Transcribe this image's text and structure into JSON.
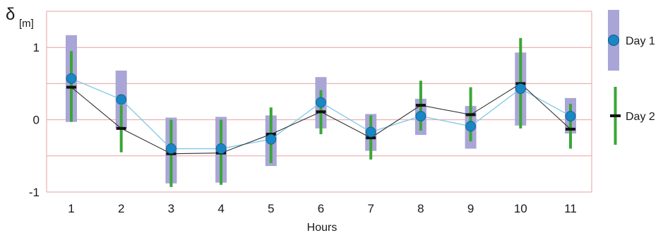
{
  "chart_data": {
    "type": "line",
    "xlabel": "Hours",
    "ylabel_symbol": "δ",
    "ylabel_unit": "[m]",
    "categories": [
      "1",
      "2",
      "3",
      "4",
      "5",
      "6",
      "7",
      "8",
      "9",
      "10",
      "11"
    ],
    "ylim": [
      -1,
      1.5
    ],
    "yticks": [
      "1",
      "0",
      "-1"
    ],
    "ytick_values": [
      1,
      0,
      -1
    ],
    "gridlines": [
      1.5,
      1,
      0.5,
      0,
      -0.5,
      -1
    ],
    "grid": true,
    "legend_position": "right",
    "series": [
      {
        "name": "Day 1",
        "marker": "circle",
        "values": [
          0.57,
          0.28,
          -0.4,
          -0.4,
          -0.27,
          0.24,
          -0.17,
          0.05,
          -0.09,
          0.43,
          0.05
        ],
        "range_low": [
          -0.03,
          -0.12,
          -0.88,
          -0.87,
          -0.64,
          -0.12,
          -0.43,
          -0.21,
          -0.4,
          -0.08,
          -0.19
        ],
        "range_high": [
          1.17,
          0.68,
          0.03,
          0.04,
          0.06,
          0.59,
          0.08,
          0.29,
          0.19,
          0.93,
          0.3
        ]
      },
      {
        "name": "Day 2",
        "marker": "dash",
        "values": [
          0.45,
          -0.12,
          -0.47,
          -0.46,
          -0.2,
          0.11,
          -0.25,
          0.2,
          0.07,
          0.5,
          -0.13
        ],
        "range_low": [
          -0.03,
          -0.45,
          -0.93,
          -0.9,
          -0.6,
          -0.2,
          -0.55,
          -0.15,
          -0.3,
          -0.12,
          -0.4
        ],
        "range_high": [
          0.95,
          0.2,
          0.0,
          0.0,
          0.17,
          0.41,
          0.06,
          0.54,
          0.45,
          1.13,
          0.22
        ]
      }
    ],
    "colors": {
      "day1_marker": "#1a86c4",
      "day1_marker_edge": "#0b5c8a",
      "day1_range": "#a9a5d6",
      "day1_line": "#7fc8e8",
      "day2_marker": "#111111",
      "day2_range": "#3aa637",
      "day2_line": "#333333",
      "grid": "#e9a0a0",
      "frame": "#e9a0a0"
    }
  }
}
